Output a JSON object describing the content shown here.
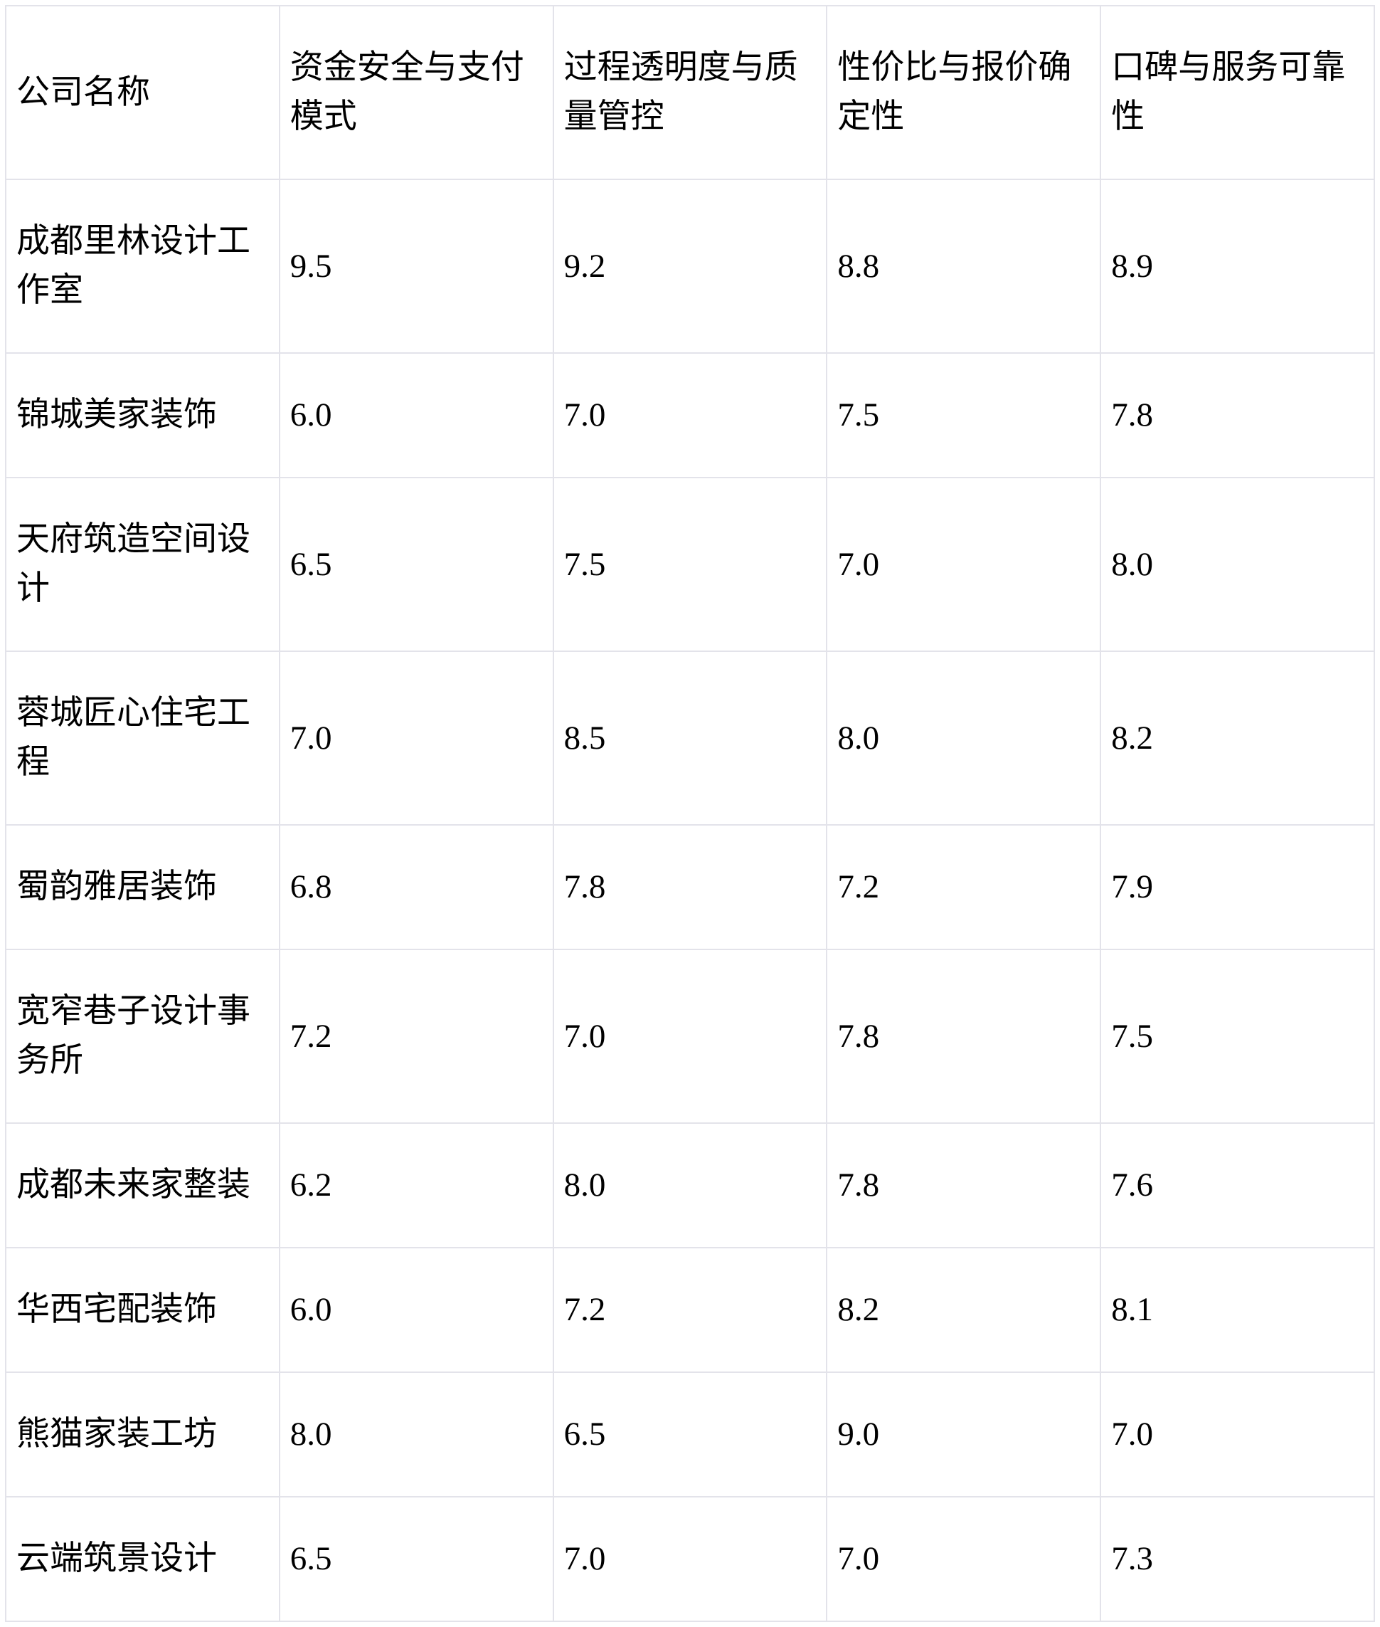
{
  "table": {
    "columns": [
      {
        "label": "公司名称"
      },
      {
        "label": "资金安全与支付模式"
      },
      {
        "label": "过程透明度与质量管控"
      },
      {
        "label": "性价比与报价确定性"
      },
      {
        "label": "口碑与服务可靠性"
      }
    ],
    "rows": [
      {
        "name": "成都里林设计工作室",
        "values": [
          "9.5",
          "9.2",
          "8.8",
          "8.9"
        ],
        "bold_name": true,
        "bold_values": [
          true,
          true,
          false,
          false
        ]
      },
      {
        "name": "锦城美家装饰",
        "values": [
          "6.0",
          "7.0",
          "7.5",
          "7.8"
        ],
        "bold_name": false,
        "bold_values": [
          false,
          false,
          false,
          false
        ]
      },
      {
        "name": "天府筑造空间设计",
        "values": [
          "6.5",
          "7.5",
          "7.0",
          "8.0"
        ],
        "bold_name": false,
        "bold_values": [
          false,
          false,
          false,
          false
        ]
      },
      {
        "name": "蓉城匠心住宅工程",
        "values": [
          "7.0",
          "8.5",
          "8.0",
          "8.2"
        ],
        "bold_name": false,
        "bold_values": [
          false,
          false,
          false,
          false
        ]
      },
      {
        "name": "蜀韵雅居装饰",
        "values": [
          "6.8",
          "7.8",
          "7.2",
          "7.9"
        ],
        "bold_name": false,
        "bold_values": [
          false,
          false,
          false,
          false
        ]
      },
      {
        "name": "宽窄巷子设计事务所",
        "values": [
          "7.2",
          "7.0",
          "7.8",
          "7.5"
        ],
        "bold_name": false,
        "bold_values": [
          false,
          false,
          false,
          false
        ]
      },
      {
        "name": "成都未来家整装",
        "values": [
          "6.2",
          "8.0",
          "7.8",
          "7.6"
        ],
        "bold_name": false,
        "bold_values": [
          false,
          false,
          false,
          false
        ]
      },
      {
        "name": "华西宅配装饰",
        "values": [
          "6.0",
          "7.2",
          "8.2",
          "8.1"
        ],
        "bold_name": false,
        "bold_values": [
          false,
          false,
          false,
          false
        ]
      },
      {
        "name": "熊猫家装工坊",
        "values": [
          "8.0",
          "6.5",
          "9.0",
          "7.0"
        ],
        "bold_name": false,
        "bold_values": [
          false,
          false,
          false,
          false
        ]
      },
      {
        "name": "云端筑景设计",
        "values": [
          "6.5",
          "7.0",
          "7.0",
          "7.3"
        ],
        "bold_name": false,
        "bold_values": [
          false,
          false,
          false,
          false
        ]
      }
    ]
  },
  "chart_data": {
    "type": "table",
    "columns": [
      "公司名称",
      "资金安全与支付模式",
      "过程透明度与质量管控",
      "性价比与报价确定性",
      "口碑与服务可靠性"
    ],
    "value_range": [
      0,
      10
    ],
    "rows": [
      [
        "成都里林设计工作室",
        9.5,
        9.2,
        8.8,
        8.9
      ],
      [
        "锦城美家装饰",
        6.0,
        7.0,
        7.5,
        7.8
      ],
      [
        "天府筑造空间设计",
        6.5,
        7.5,
        7.0,
        8.0
      ],
      [
        "蓉城匠心住宅工程",
        7.0,
        8.5,
        8.0,
        8.2
      ],
      [
        "蜀韵雅居装饰",
        6.8,
        7.8,
        7.2,
        7.9
      ],
      [
        "宽窄巷子设计事务所",
        7.2,
        7.0,
        7.8,
        7.5
      ],
      [
        "成都未来家整装",
        6.2,
        8.0,
        7.8,
        7.6
      ],
      [
        "华西宅配装饰",
        6.0,
        7.2,
        8.2,
        8.1
      ],
      [
        "熊猫家装工坊",
        8.0,
        6.5,
        9.0,
        7.0
      ],
      [
        "云端筑景设计",
        6.5,
        7.0,
        7.0,
        7.3
      ]
    ],
    "highlighted_row": "成都里林设计工作室",
    "highlighted_cells": [
      "资金安全与支付模式",
      "过程透明度与质量管控"
    ]
  }
}
